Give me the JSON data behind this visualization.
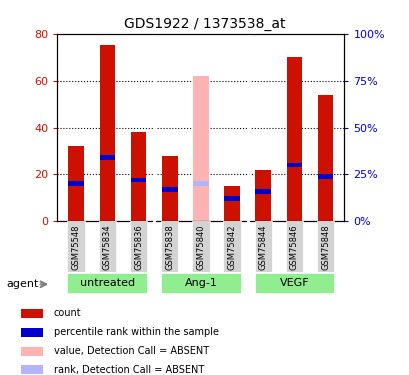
{
  "title": "GDS1922 / 1373538_at",
  "samples": [
    "GSM75548",
    "GSM75834",
    "GSM75836",
    "GSM75838",
    "GSM75840",
    "GSM75842",
    "GSM75844",
    "GSM75846",
    "GSM75848"
  ],
  "counts": [
    32,
    75,
    38,
    28,
    62,
    15,
    22,
    70,
    54
  ],
  "ranks": [
    20,
    34,
    22,
    17,
    20,
    12,
    16,
    30,
    24
  ],
  "absent": [
    false,
    false,
    false,
    false,
    true,
    false,
    false,
    false,
    false
  ],
  "group_spans": [
    {
      "start": 0,
      "end": 2,
      "label": "untreated"
    },
    {
      "start": 3,
      "end": 5,
      "label": "Ang-1"
    },
    {
      "start": 6,
      "end": 8,
      "label": "VEGF"
    }
  ],
  "ylim_left": [
    0,
    80
  ],
  "ylim_right": [
    0,
    100
  ],
  "yticks_left": [
    0,
    20,
    40,
    60,
    80
  ],
  "yticks_right": [
    0,
    25,
    50,
    75,
    100
  ],
  "ytick_labels_left": [
    "0",
    "20",
    "40",
    "60",
    "80"
  ],
  "ytick_labels_right": [
    "0%",
    "25%",
    "50%",
    "75%",
    "100%"
  ],
  "bar_color_present": "#cc1100",
  "bar_color_absent_value": "#ffb3b3",
  "rank_color_present": "#0000cc",
  "rank_color_absent": "#b3b3ff",
  "bar_width": 0.5,
  "legend_items": [
    {
      "label": "count",
      "color": "#cc1100"
    },
    {
      "label": "percentile rank within the sample",
      "color": "#0000cc"
    },
    {
      "label": "value, Detection Call = ABSENT",
      "color": "#ffb3b3"
    },
    {
      "label": "rank, Detection Call = ABSENT",
      "color": "#b3b3ff"
    }
  ],
  "group_row_color": "#90EE90",
  "tick_bg_color": "#d3d3d3",
  "agent_label": "agent"
}
